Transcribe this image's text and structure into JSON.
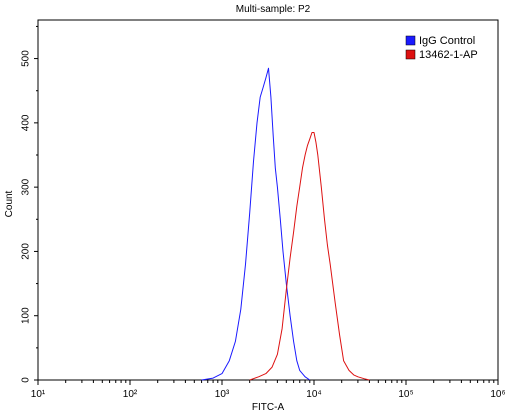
{
  "chart_data": {
    "type": "line",
    "title": "Multi-sample: P2",
    "xlabel": "FITC-A",
    "ylabel": "Count",
    "x_scale": "log",
    "xlim": [
      10,
      1000000
    ],
    "ylim": [
      0,
      560
    ],
    "x_ticks": [
      10,
      100,
      1000,
      10000,
      100000,
      1000000
    ],
    "x_tick_labels": [
      "10¹",
      "10²",
      "10³",
      "10⁴",
      "10⁵",
      "10⁶"
    ],
    "y_ticks": [
      0,
      100,
      200,
      300,
      400,
      500
    ],
    "y_tick_labels": [
      "0",
      "100",
      "200",
      "300",
      "400",
      "500"
    ],
    "legend_position": "top-right",
    "series": [
      {
        "name": "IgG Control",
        "color": "#1a1aff",
        "x": [
          600,
          800,
          1000,
          1200,
          1400,
          1600,
          1800,
          2000,
          2200,
          2400,
          2600,
          2800,
          3000,
          3200,
          3400,
          3600,
          3800,
          4000,
          4300,
          4600,
          5000,
          5500,
          6000,
          6500,
          7000,
          8000,
          9000
        ],
        "y": [
          0,
          3,
          10,
          30,
          60,
          110,
          180,
          260,
          340,
          400,
          440,
          455,
          470,
          485,
          440,
          380,
          330,
          300,
          250,
          200,
          150,
          100,
          60,
          30,
          15,
          5,
          0
        ]
      },
      {
        "name": "13462-1-AP",
        "color": "#dd1111",
        "x": [
          2000,
          2500,
          3000,
          3500,
          4000,
          4500,
          5000,
          5500,
          6000,
          6500,
          7000,
          7500,
          8000,
          8500,
          9000,
          9500,
          10000,
          10500,
          11000,
          12000,
          13000,
          14000,
          15000,
          17000,
          19000,
          21000,
          24000,
          27000,
          30000,
          35000,
          40000
        ],
        "y": [
          0,
          5,
          10,
          20,
          40,
          80,
          140,
          190,
          230,
          270,
          300,
          330,
          350,
          365,
          375,
          385,
          385,
          370,
          350,
          300,
          250,
          210,
          180,
          120,
          70,
          30,
          15,
          8,
          5,
          2,
          0
        ]
      }
    ]
  }
}
